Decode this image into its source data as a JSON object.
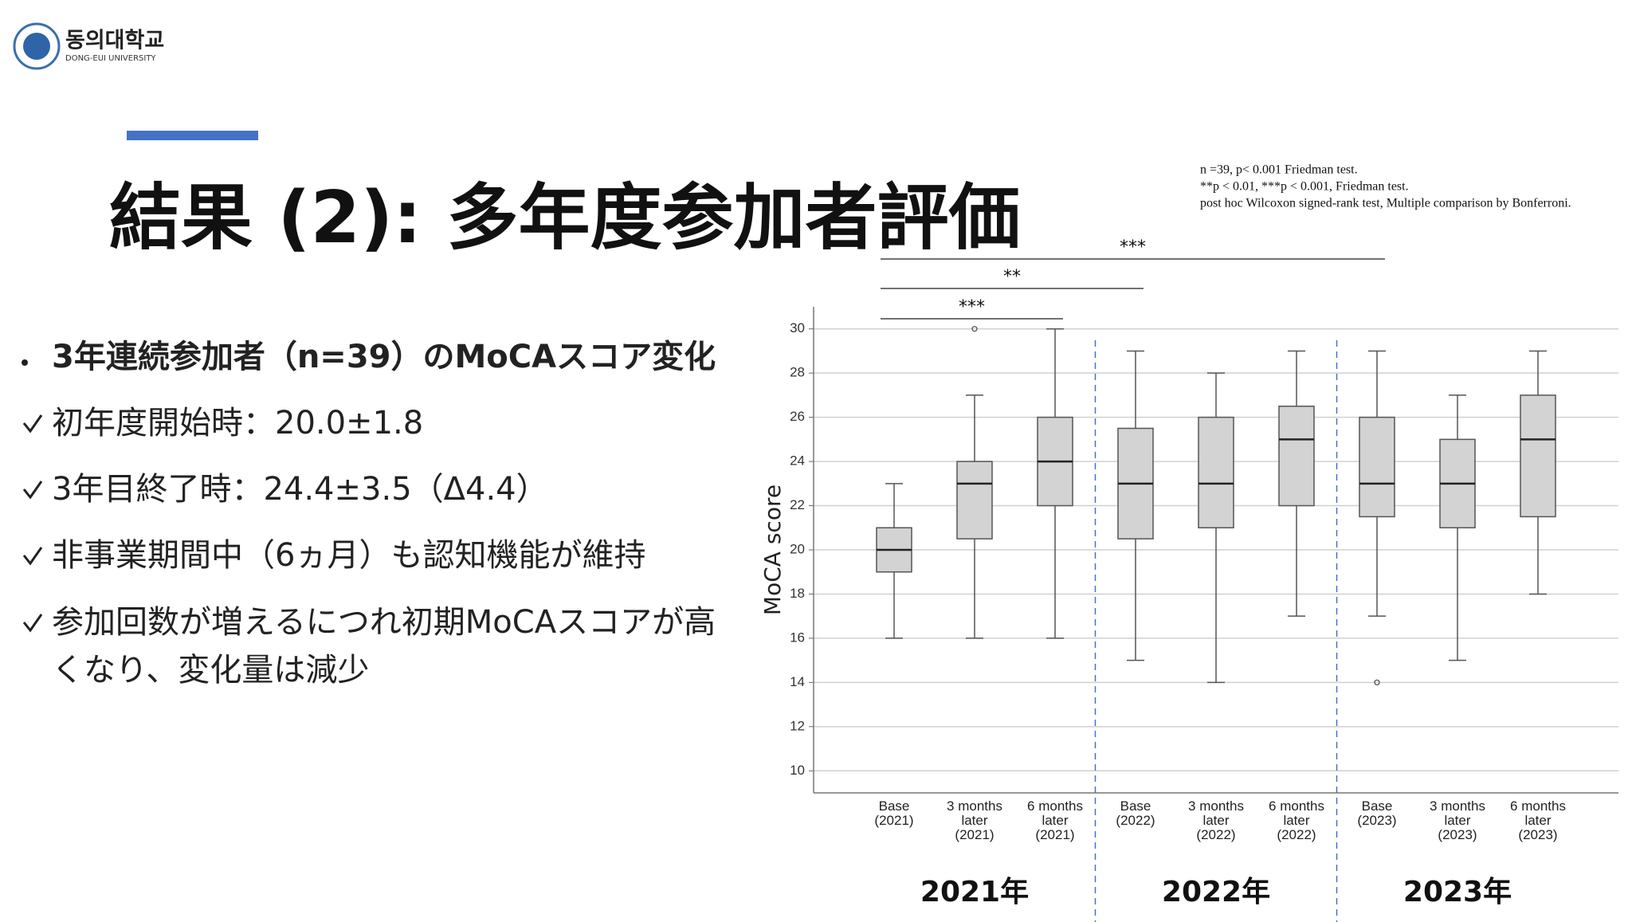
{
  "logo": {
    "name": "동의대학교",
    "subname": "DONG-EUI UNIVERSITY"
  },
  "title": "結果 (2): 多年度参加者評価",
  "bullets": {
    "heading": "3年連続参加者（n=39）のMoCAスコア変化",
    "items": [
      "初年度開始時：20.0±1.8",
      "3年目終了時：24.4±3.5（Δ4.4）",
      "非事業期間中（6ヵ月）も認知機能が維持",
      "参加回数が増えるにつれ初期MoCAスコアが高くなり、変化量は減少"
    ]
  },
  "chart_data": {
    "type": "box",
    "notes": [
      "n =39, p< 0.001 Friedman test.",
      "**p <  0.01, ***p <  0.001, Friedman test.",
      "post hoc Wilcoxon signed-rank test, Multiple comparison by Bonferroni."
    ],
    "y_label": "MoCA score",
    "categories": [
      "Base (2021)",
      "3 months later (2021)",
      "6 months later (2021)",
      "Base (2022)",
      "3 months later (2022)",
      "6 months later (2022)",
      "Base (2023)",
      "3 months later (2023)",
      "6 months later (2023)"
    ],
    "groups": [
      "2021年",
      "2022年",
      "2023年"
    ],
    "boxes": [
      {
        "min": 16,
        "q1": 19,
        "median": 20,
        "q3": 21,
        "max": 23,
        "outliers": []
      },
      {
        "min": 16,
        "q1": 20.5,
        "median": 23,
        "q3": 24,
        "max": 27,
        "outliers": [
          30
        ]
      },
      {
        "min": 16,
        "q1": 22,
        "median": 24,
        "q3": 26,
        "max": 30,
        "outliers": []
      },
      {
        "min": 15,
        "q1": 20.5,
        "median": 23,
        "q3": 25.5,
        "max": 29,
        "outliers": []
      },
      {
        "min": 14,
        "q1": 21,
        "median": 23,
        "q3": 26,
        "max": 28,
        "outliers": []
      },
      {
        "min": 17,
        "q1": 22,
        "median": 25,
        "q3": 26.5,
        "max": 29,
        "outliers": []
      },
      {
        "min": 17,
        "q1": 21.5,
        "median": 23,
        "q3": 26,
        "max": 29,
        "outliers": [
          14
        ]
      },
      {
        "min": 15,
        "q1": 21,
        "median": 23,
        "q3": 25,
        "max": 27,
        "outliers": []
      },
      {
        "min": 18,
        "q1": 21.5,
        "median": 25,
        "q3": 27,
        "max": 29,
        "outliers": []
      }
    ],
    "color": "#d3d3d3",
    "brackets": [
      {
        "label": "***",
        "from": 0,
        "to": 2
      },
      {
        "label": "**",
        "from": 0,
        "to": 3
      },
      {
        "label": "***",
        "from": 0,
        "to": 6
      }
    ],
    "ylim": [
      9,
      31
    ],
    "yticks": [
      10,
      12,
      14,
      16,
      18,
      20,
      22,
      24,
      26,
      28,
      30
    ],
    "grid": true
  }
}
